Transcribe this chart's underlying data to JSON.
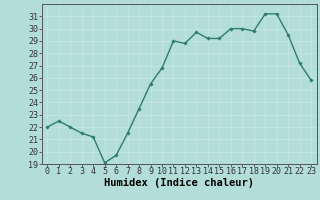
{
  "x": [
    0,
    1,
    2,
    3,
    4,
    5,
    6,
    7,
    8,
    9,
    10,
    11,
    12,
    13,
    14,
    15,
    16,
    17,
    18,
    19,
    20,
    21,
    22,
    23
  ],
  "y": [
    22.0,
    22.5,
    22.0,
    21.5,
    21.2,
    19.1,
    19.7,
    21.5,
    23.5,
    25.5,
    26.8,
    29.0,
    28.8,
    29.7,
    29.2,
    29.2,
    30.0,
    30.0,
    29.8,
    31.2,
    31.2,
    29.5,
    27.2,
    25.8
  ],
  "line_color": "#2e7d6e",
  "marker": "D",
  "marker_size": 1.8,
  "bg_color": "#b2ddd8",
  "grid_color": "#c8e8e2",
  "xlabel": "Humidex (Indice chaleur)",
  "ylim": [
    19,
    32
  ],
  "xlim": [
    -0.5,
    23.5
  ],
  "yticks": [
    19,
    20,
    21,
    22,
    23,
    24,
    25,
    26,
    27,
    28,
    29,
    30,
    31
  ],
  "xticks": [
    0,
    1,
    2,
    3,
    4,
    5,
    6,
    7,
    8,
    9,
    10,
    11,
    12,
    13,
    14,
    15,
    16,
    17,
    18,
    19,
    20,
    21,
    22,
    23
  ],
  "xlabel_fontsize": 7.5,
  "tick_fontsize": 6.0,
  "line_width": 1.0
}
